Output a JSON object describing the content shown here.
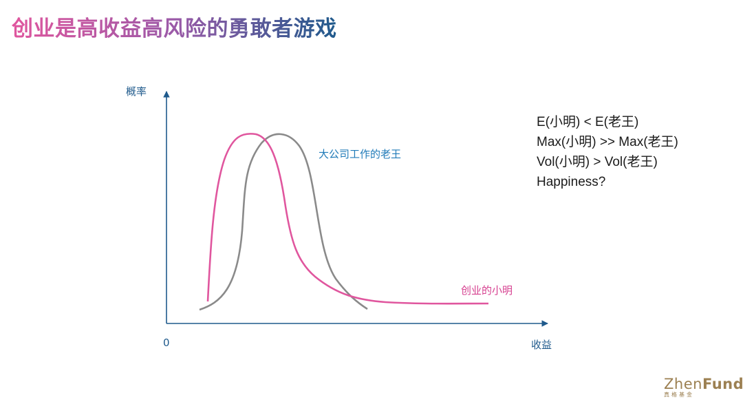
{
  "title": "创业是高收益高风险的勇敢者游戏",
  "chart_data": {
    "type": "line",
    "ylabel": "概率",
    "xlabel": "收益",
    "origin_label": "0",
    "series": [
      {
        "name": "大公司工作的老王",
        "color": "#8a8a8a"
      },
      {
        "name": "创业的小明",
        "color": "#e0569e"
      }
    ],
    "axis_color": "#1f5a8c",
    "grid": false
  },
  "notes": [
    "E(小明) < E(老王)",
    "Max(小明) >> Max(老王)",
    "Vol(小明) > Vol(老王)",
    "Happiness?"
  ],
  "logo": {
    "brand": "Zhen",
    "brand2": "Fund",
    "sub": "真格基金"
  }
}
